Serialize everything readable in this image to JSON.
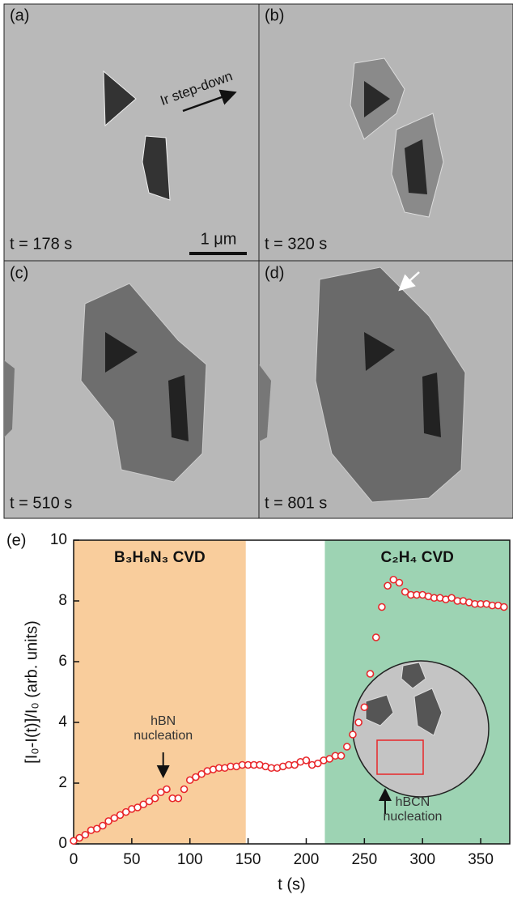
{
  "figure": {
    "panels": [
      {
        "label": "(a)",
        "time": "t = 178 s"
      },
      {
        "label": "(b)",
        "time": "t = 320 s"
      },
      {
        "label": "(c)",
        "time": "t = 510 s"
      },
      {
        "label": "(d)",
        "time": "t = 801 s"
      }
    ],
    "scale_bar": "1 μm",
    "step_label": "Ir step-down"
  },
  "chart_data": {
    "type": "scatter",
    "panel_label": "(e)",
    "xlabel": "t (s)",
    "ylabel": "[I₀-I(t)]/I₀ (arb. units)",
    "color": "#e8262a",
    "x": [
      0,
      5,
      10,
      15,
      20,
      25,
      30,
      35,
      40,
      45,
      50,
      55,
      60,
      65,
      70,
      75,
      80,
      85,
      90,
      95,
      100,
      105,
      110,
      115,
      120,
      125,
      130,
      135,
      140,
      145,
      150,
      155,
      160,
      165,
      170,
      175,
      180,
      185,
      190,
      195,
      200,
      205,
      210,
      215,
      220,
      225,
      230,
      235,
      240,
      245,
      250,
      255,
      260,
      265,
      270,
      275,
      280,
      285,
      290,
      295,
      300,
      305,
      310,
      315,
      320,
      325,
      330,
      335,
      340,
      345,
      350,
      355,
      360,
      365,
      370
    ],
    "values": [
      0.1,
      0.2,
      0.3,
      0.45,
      0.5,
      0.6,
      0.75,
      0.85,
      0.95,
      1.05,
      1.15,
      1.2,
      1.3,
      1.4,
      1.5,
      1.7,
      1.8,
      1.5,
      1.5,
      1.8,
      2.1,
      2.2,
      2.3,
      2.4,
      2.45,
      2.5,
      2.5,
      2.55,
      2.55,
      2.6,
      2.6,
      2.6,
      2.6,
      2.55,
      2.5,
      2.5,
      2.55,
      2.6,
      2.6,
      2.7,
      2.75,
      2.6,
      2.65,
      2.75,
      2.8,
      2.9,
      2.9,
      3.2,
      3.6,
      4.0,
      4.5,
      5.6,
      6.8,
      7.8,
      8.5,
      8.7,
      8.6,
      8.3,
      8.2,
      8.2,
      8.2,
      8.15,
      8.1,
      8.1,
      8.05,
      8.1,
      8.0,
      8.0,
      7.95,
      7.9,
      7.9,
      7.9,
      7.85,
      7.85,
      7.8
    ],
    "regions": [
      {
        "label": "B₃H₆N₃ CVD",
        "xlim": [
          0,
          148
        ],
        "color": "#f9cd9c"
      },
      {
        "label": "C₂H₄ CVD",
        "xlim": [
          216,
          375
        ],
        "color": "#9dd3b3"
      }
    ],
    "annotations": [
      {
        "lines": [
          "hBN",
          "nucleation"
        ],
        "x": 77
      },
      {
        "lines": [
          "hBCN",
          "nucleation"
        ],
        "x": 272
      }
    ],
    "xlim": [
      0,
      375
    ],
    "ylim": [
      0,
      10
    ],
    "xticks": [
      0,
      50,
      100,
      150,
      200,
      250,
      300,
      350
    ],
    "yticks": [
      0,
      2,
      4,
      6,
      8,
      10
    ]
  }
}
